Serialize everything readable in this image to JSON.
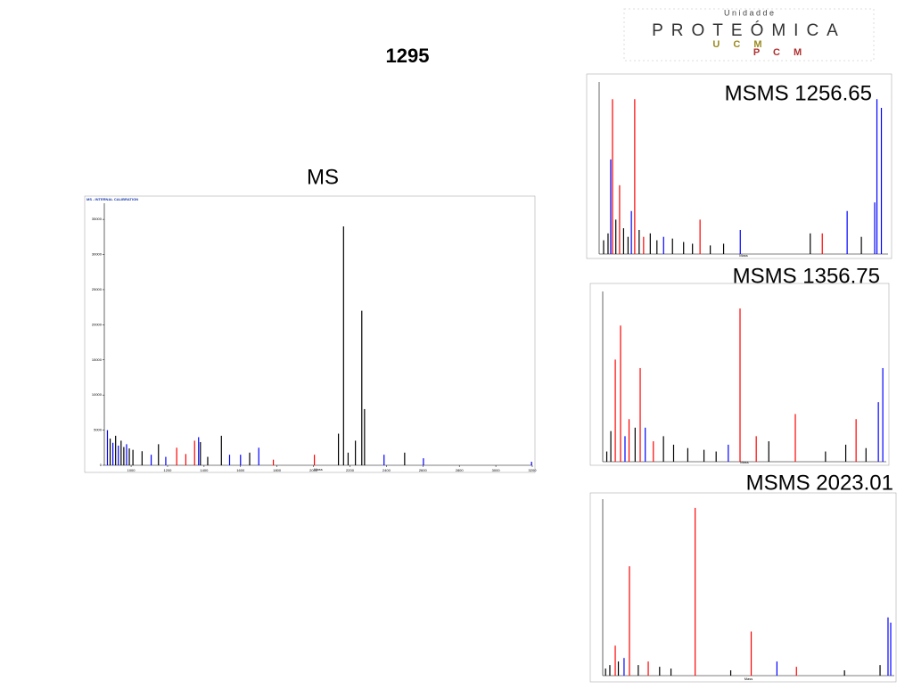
{
  "title": "1295",
  "logo": {
    "top": "U n i d a d   d e",
    "main": "PROTEÓMICA",
    "sub1": "U C M",
    "sub2": "P C M"
  },
  "panels": [
    {
      "label": "MS",
      "header": "MS - INTERNAL CALIBRATION",
      "xlabel": "Mass",
      "xlim": [
        853,
        3200
      ],
      "ylim": [
        0,
        37300
      ],
      "xticks": [
        1000,
        1200,
        1400,
        1600,
        1800,
        2000,
        2200,
        2400,
        2600,
        2800,
        3000,
        3200
      ],
      "yticks": [
        0,
        5000,
        10000,
        15000,
        20000,
        25000,
        30000,
        35000
      ],
      "peaks": {
        "x": [
          870,
          885,
          900,
          915,
          930,
          945,
          960,
          975,
          990,
          1010,
          1060,
          1110,
          1150,
          1190,
          1250,
          1300,
          1348,
          1370,
          1380,
          1420,
          1495,
          1540,
          1600,
          1650,
          1700,
          1780,
          2005,
          2137,
          2165,
          2190,
          2230,
          2265,
          2280,
          2387,
          2500,
          2603,
          3196
        ],
        "values": [
          5000,
          3800,
          3200,
          4200,
          2800,
          3500,
          2600,
          3000,
          2400,
          2200,
          2000,
          1500,
          3000,
          1200,
          2500,
          1600,
          3500,
          4000,
          3300,
          1200,
          4200,
          1500,
          1500,
          1800,
          2500,
          800,
          1500,
          4500,
          34000,
          1800,
          3500,
          22000,
          8000,
          1500,
          1800,
          1000,
          500
        ],
        "colors": [
          "blue",
          "black",
          "blue",
          "black",
          "blue",
          "black",
          "black",
          "blue",
          "black",
          "black",
          "black",
          "blue",
          "black",
          "blue",
          "red",
          "red",
          "red",
          "blue",
          "black",
          "black",
          "black",
          "blue",
          "blue",
          "black",
          "blue",
          "red",
          "red",
          "black",
          "black",
          "black",
          "black",
          "black",
          "black",
          "blue",
          "black",
          "blue",
          "blue"
        ]
      }
    },
    {
      "label": "MSMS 1256.65",
      "xlabel": "Mass",
      "xlim": [
        0,
        1300
      ],
      "ylim": [
        0,
        100
      ],
      "peaks": {
        "x": [
          20,
          40,
          52,
          60,
          75,
          92,
          110,
          130,
          145,
          160,
          180,
          200,
          230,
          260,
          290,
          330,
          380,
          420,
          454,
          500,
          560,
          635,
          950,
          1004,
          1116,
          1180,
          1240,
          1250,
          1270
        ],
        "values": [
          8,
          12,
          55,
          90,
          20,
          40,
          15,
          10,
          25,
          90,
          14,
          10,
          12,
          8,
          10,
          9,
          7,
          6,
          20,
          5,
          6,
          14,
          12,
          12,
          25,
          10,
          30,
          90,
          85
        ],
        "colors": [
          "black",
          "black",
          "blue",
          "red",
          "black",
          "red",
          "black",
          "black",
          "blue",
          "red",
          "black",
          "red",
          "black",
          "black",
          "blue",
          "black",
          "black",
          "black",
          "red",
          "black",
          "black",
          "blue",
          "black",
          "red",
          "blue",
          "black",
          "blue",
          "blue",
          "blue"
        ]
      }
    },
    {
      "label": "MSMS 1356.75",
      "xlabel": "Mass",
      "xlim": [
        0,
        1400
      ],
      "ylim": [
        0,
        100
      ],
      "peaks": {
        "x": [
          20,
          40,
          62,
          88,
          110,
          130,
          160,
          185,
          210,
          250,
          300,
          350,
          420,
          500,
          560,
          620,
          678,
          758,
          820,
          951,
          1100,
          1200,
          1251,
          1300,
          1361,
          1383
        ],
        "values": [
          6,
          18,
          60,
          80,
          15,
          25,
          20,
          55,
          20,
          12,
          15,
          10,
          8,
          7,
          6,
          10,
          90,
          15,
          12,
          28,
          6,
          10,
          25,
          8,
          35,
          55
        ],
        "colors": [
          "black",
          "black",
          "red",
          "red",
          "blue",
          "red",
          "black",
          "red",
          "blue",
          "red",
          "black",
          "black",
          "black",
          "black",
          "black",
          "blue",
          "red",
          "red",
          "black",
          "red",
          "black",
          "black",
          "red",
          "black",
          "blue",
          "blue"
        ]
      }
    },
    {
      "label": "MSMS 2023.01",
      "xlabel": "Mass",
      "xlim": [
        0,
        2050
      ],
      "ylim": [
        0,
        100
      ],
      "peaks": {
        "x": [
          20,
          50,
          88,
          110,
          150,
          188,
          250,
          320,
          400,
          480,
          650,
          900,
          1044,
          1225,
          1362,
          1700,
          1950,
          2006,
          2025
        ],
        "values": [
          4,
          6,
          17,
          8,
          10,
          62,
          6,
          8,
          5,
          4,
          95,
          3,
          25,
          8,
          5,
          3,
          6,
          33,
          30
        ],
        "colors": [
          "black",
          "black",
          "red",
          "black",
          "blue",
          "red",
          "black",
          "red",
          "black",
          "black",
          "red",
          "black",
          "red",
          "blue",
          "red",
          "black",
          "black",
          "blue",
          "blue"
        ]
      }
    }
  ]
}
